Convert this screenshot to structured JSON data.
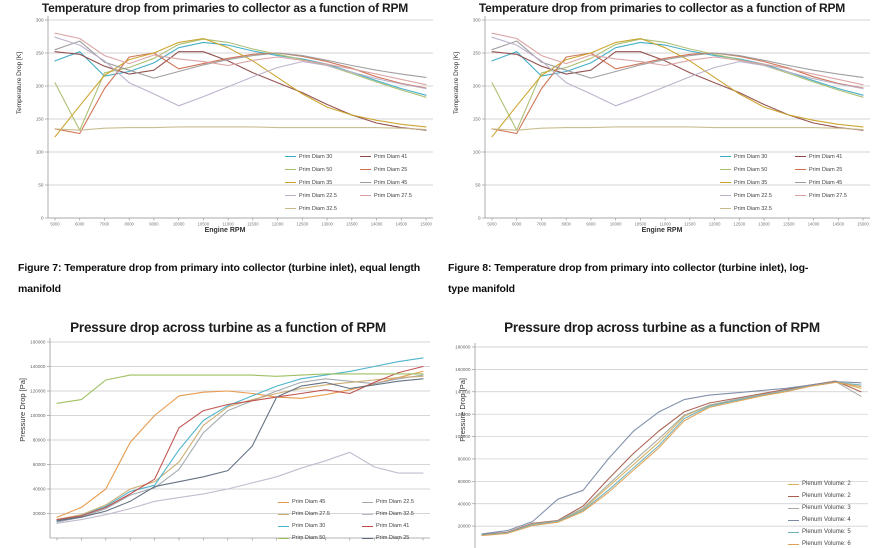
{
  "captions": {
    "fig7": "Figure 7: Temperature drop from primary into collector (turbine inlet), equal length manifold",
    "fig8": "Figure 8: Temperature drop from primary into collector (turbine inlet), log-type manifold"
  },
  "chart_data": [
    {
      "type": "line",
      "title": "Temperature drop from primaries to collector as a function of RPM",
      "xlabel": "Engine RPM",
      "ylabel": "Temperature Drop [K]",
      "ylim": [
        0,
        300
      ],
      "yticks": [
        300,
        250,
        200,
        150,
        100,
        50,
        0
      ],
      "grid": true,
      "legend": {
        "position": "inside-bottom-right",
        "columns": 2
      },
      "x": [
        5000,
        6000,
        7000,
        8000,
        9000,
        10000,
        10500,
        11000,
        11500,
        12000,
        12500,
        13000,
        13500,
        14000,
        14500,
        15000
      ],
      "x_tick_labels": [
        "5000",
        "6000",
        "7000",
        "8000",
        "9000",
        "10000",
        "10500",
        "11000",
        "11500",
        "12000",
        "12500",
        "13000",
        "13500",
        "14000",
        "14500",
        "15000"
      ],
      "series": [
        {
          "name": "Prim Diam 30",
          "color": "#3BABC4",
          "values": [
            238,
            252,
            215,
            222,
            235,
            258,
            266,
            262,
            253,
            246,
            241,
            233,
            221,
            208,
            196,
            186
          ]
        },
        {
          "name": "Prim Diam 41",
          "color": "#8E4A49",
          "values": [
            252,
            248,
            230,
            218,
            224,
            252,
            252,
            238,
            220,
            205,
            190,
            172,
            156,
            144,
            137,
            133
          ]
        },
        {
          "name": "Prim Diam 50",
          "color": "#A9BD6F",
          "values": [
            205,
            133,
            220,
            228,
            242,
            263,
            271,
            266,
            256,
            248,
            240,
            231,
            219,
            206,
            194,
            183
          ]
        },
        {
          "name": "Prim Diam 25",
          "color": "#CE6F50",
          "values": [
            135,
            128,
            196,
            244,
            250,
            226,
            234,
            242,
            248,
            250,
            245,
            237,
            227,
            214,
            204,
            197
          ]
        },
        {
          "name": "Prim Diam 35",
          "color": "#C9A227",
          "values": [
            123,
            170,
            216,
            240,
            250,
            266,
            272,
            258,
            238,
            213,
            188,
            168,
            156,
            148,
            142,
            138
          ]
        },
        {
          "name": "Prim Diam 45",
          "color": "#9B9B9B",
          "values": [
            255,
            268,
            236,
            224,
            212,
            222,
            232,
            240,
            246,
            250,
            246,
            239,
            231,
            224,
            218,
            213
          ]
        },
        {
          "name": "Prim Diam 22.5",
          "color": "#BBAFC9",
          "values": [
            274,
            262,
            238,
            205,
            188,
            170,
            184,
            199,
            214,
            228,
            237,
            231,
            221,
            211,
            203,
            196
          ]
        },
        {
          "name": "Prim Diam 27.5",
          "color": "#D9A0A0",
          "values": [
            280,
            272,
            246,
            234,
            247,
            241,
            237,
            231,
            239,
            244,
            239,
            233,
            226,
            218,
            210,
            202
          ]
        },
        {
          "name": "Prim Diam 32.5",
          "color": "#C6BA8B",
          "values": [
            135,
            133,
            136,
            137,
            137,
            138,
            138,
            138,
            138,
            137,
            137,
            137,
            137,
            137,
            136,
            134
          ]
        }
      ]
    },
    {
      "type": "line",
      "title": "Temperature drop from primaries to collector as a function of RPM",
      "xlabel": "Engine RPM",
      "ylabel": "Temperature Drop [K]",
      "ylim": [
        0,
        300
      ],
      "yticks": [
        300,
        250,
        200,
        150,
        100,
        50,
        0
      ],
      "grid": true,
      "legend": {
        "position": "inside-bottom-right",
        "columns": 2
      },
      "x": [
        5000,
        6000,
        7000,
        8000,
        9000,
        10000,
        10500,
        11000,
        11500,
        12000,
        12500,
        13000,
        13500,
        14000,
        14500,
        15000
      ],
      "x_tick_labels": [
        "5000",
        "6000",
        "7000",
        "8000",
        "9000",
        "10000",
        "10500",
        "11000",
        "11500",
        "12000",
        "12500",
        "13000",
        "13500",
        "14000",
        "14500",
        "15000"
      ],
      "series": [
        {
          "name": "Prim Diam 30",
          "color": "#3BABC4",
          "values": [
            238,
            252,
            215,
            222,
            235,
            258,
            266,
            262,
            253,
            246,
            241,
            233,
            221,
            208,
            196,
            186
          ]
        },
        {
          "name": "Prim Diam 41",
          "color": "#8E4A49",
          "values": [
            252,
            248,
            230,
            218,
            224,
            252,
            252,
            238,
            220,
            205,
            190,
            172,
            156,
            144,
            137,
            133
          ]
        },
        {
          "name": "Prim Diam 50",
          "color": "#A9BD6F",
          "values": [
            205,
            133,
            220,
            228,
            242,
            263,
            271,
            266,
            256,
            248,
            240,
            231,
            219,
            206,
            194,
            183
          ]
        },
        {
          "name": "Prim Diam 25",
          "color": "#CE6F50",
          "values": [
            135,
            128,
            196,
            244,
            250,
            226,
            234,
            242,
            248,
            250,
            245,
            237,
            227,
            214,
            204,
            197
          ]
        },
        {
          "name": "Prim Diam 35",
          "color": "#C9A227",
          "values": [
            123,
            170,
            216,
            240,
            250,
            266,
            272,
            258,
            238,
            213,
            188,
            168,
            156,
            148,
            142,
            138
          ]
        },
        {
          "name": "Prim Diam 45",
          "color": "#9B9B9B",
          "values": [
            255,
            268,
            236,
            224,
            212,
            222,
            232,
            240,
            246,
            250,
            246,
            239,
            231,
            224,
            218,
            213
          ]
        },
        {
          "name": "Prim Diam 22.5",
          "color": "#BBAFC9",
          "values": [
            274,
            262,
            238,
            205,
            188,
            170,
            184,
            199,
            214,
            228,
            237,
            231,
            221,
            211,
            203,
            196
          ]
        },
        {
          "name": "Prim Diam 27.5",
          "color": "#D9A0A0",
          "values": [
            280,
            272,
            246,
            234,
            247,
            241,
            237,
            231,
            239,
            244,
            239,
            233,
            226,
            218,
            210,
            202
          ]
        },
        {
          "name": "Prim Diam 32.5",
          "color": "#C6BA8B",
          "values": [
            135,
            133,
            136,
            137,
            137,
            138,
            138,
            138,
            138,
            137,
            137,
            137,
            137,
            137,
            136,
            134
          ]
        }
      ]
    },
    {
      "type": "line",
      "title": "Pressure drop across turbine as a function of RPM",
      "xlabel": "",
      "ylabel": "Pressure Drop [Pa]",
      "ylim": [
        0,
        160000
      ],
      "yticks": [
        160000,
        140000,
        120000,
        100000,
        80000,
        60000,
        40000,
        20000
      ],
      "grid": true,
      "legend": {
        "position": "inside-bottom-right",
        "columns": 2
      },
      "x": [
        5000,
        6000,
        7000,
        8000,
        9000,
        10000,
        10500,
        11000,
        11500,
        12000,
        12500,
        13000,
        13500,
        14000,
        14500,
        15000
      ],
      "x_tick_labels": [],
      "series": [
        {
          "name": "Prim Diam 45",
          "color": "#E79646",
          "values": [
            17000,
            25000,
            40000,
            78000,
            100000,
            116000,
            119000,
            120000,
            118000,
            115000,
            114000,
            117000,
            121000,
            126000,
            131000,
            136000
          ]
        },
        {
          "name": "Prim Diam 22.5",
          "color": "#9FA8AE",
          "values": [
            13000,
            17000,
            24000,
            35000,
            41000,
            56000,
            86000,
            104000,
            112000,
            120000,
            127000,
            130000,
            128000,
            126000,
            130000,
            133000
          ]
        },
        {
          "name": "Prim Diam 27.5",
          "color": "#CBAA6E",
          "values": [
            15000,
            19000,
            27000,
            40000,
            46000,
            62000,
            92000,
            107000,
            113000,
            118000,
            122000,
            125000,
            127000,
            129000,
            131000,
            132000
          ]
        },
        {
          "name": "Prim Diam 32.5",
          "color": "#BFB8CC",
          "values": [
            12000,
            15000,
            19000,
            24000,
            30000,
            33000,
            36000,
            40000,
            45000,
            50000,
            57000,
            63000,
            70000,
            58000,
            53000,
            53000
          ]
        },
        {
          "name": "Prim Diam 30",
          "color": "#45B1C9",
          "values": [
            14000,
            18000,
            26000,
            38000,
            43000,
            72000,
            96000,
            108000,
            116000,
            124000,
            130000,
            133000,
            136000,
            140000,
            144000,
            147000
          ]
        },
        {
          "name": "Prim Diam 41",
          "color": "#BE4B48",
          "values": [
            15000,
            18000,
            25000,
            36000,
            48000,
            90000,
            104000,
            109000,
            112000,
            115000,
            118000,
            121000,
            118000,
            127000,
            135000,
            140000
          ]
        },
        {
          "name": "Prim Diam 50",
          "color": "#9ABD5A",
          "values": [
            110000,
            113000,
            129000,
            133000,
            133000,
            133000,
            133000,
            133000,
            133000,
            132000,
            133000,
            134000,
            134000,
            134000,
            134000,
            134000
          ]
        },
        {
          "name": "Prim Diam 25",
          "color": "#5E6B7D",
          "values": [
            14000,
            17000,
            22000,
            30000,
            42000,
            46000,
            50000,
            55000,
            75000,
            115000,
            124000,
            127000,
            122000,
            125000,
            128000,
            130000
          ]
        }
      ]
    },
    {
      "type": "line",
      "title": "Pressure drop across turbine as a function of RPM",
      "xlabel": "",
      "ylabel": "Pressure Drop [Pa]",
      "ylim": [
        0,
        180000
      ],
      "yticks": [
        180000,
        160000,
        140000,
        120000,
        100000,
        80000,
        60000,
        40000,
        20000
      ],
      "grid": true,
      "legend": {
        "position": "inside-bottom-right",
        "columns": 1
      },
      "x": [
        5000,
        6000,
        7000,
        8000,
        9000,
        10000,
        10500,
        11000,
        11500,
        12000,
        12500,
        13000,
        13500,
        14000,
        14500,
        15000
      ],
      "x_tick_labels": [],
      "series": [
        {
          "name": "Plenum Volume: 2",
          "color": "#D8B05E",
          "values": [
            12000,
            14000,
            22000,
            24000,
            35000,
            55000,
            75000,
            95000,
            118000,
            128000,
            132000,
            137000,
            141000,
            146000,
            149000,
            143000
          ]
        },
        {
          "name": "Plenum Volume: 2",
          "color": "#A85D4E",
          "values": [
            12500,
            14500,
            22500,
            25000,
            38000,
            62000,
            85000,
            105000,
            122000,
            130000,
            134000,
            138000,
            142000,
            146000,
            149500,
            140000
          ]
        },
        {
          "name": "Plenum Volume: 3",
          "color": "#A4ACA0",
          "values": [
            12000,
            14000,
            22000,
            24500,
            36000,
            57000,
            78000,
            98000,
            119000,
            128000,
            133000,
            137000,
            141000,
            145500,
            149000,
            136000
          ]
        },
        {
          "name": "Plenum Volume: 4",
          "color": "#7C8BA6",
          "values": [
            13000,
            16000,
            24000,
            44000,
            52000,
            80000,
            105000,
            122000,
            133000,
            137000,
            139000,
            141000,
            143000,
            146000,
            149000,
            148000
          ]
        },
        {
          "name": "Plenum Volume: 5",
          "color": "#6FB0B8",
          "values": [
            12000,
            14000,
            21000,
            24000,
            34000,
            52000,
            72000,
            92000,
            116000,
            127000,
            132000,
            136500,
            140500,
            145000,
            148500,
            146000
          ]
        },
        {
          "name": "Plenum Volume: 6",
          "color": "#DFA357",
          "values": [
            11500,
            13500,
            20500,
            23500,
            33000,
            50000,
            70000,
            90000,
            114000,
            126000,
            131000,
            136000,
            140000,
            145000,
            148500,
            144500
          ]
        }
      ]
    }
  ]
}
